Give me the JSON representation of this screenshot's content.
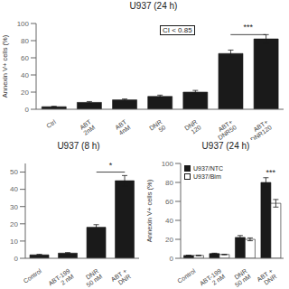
{
  "chart_data": [
    {
      "type": "bar",
      "title": "U937 (24 h)",
      "y_label": "Annexin V+ cells (%)",
      "categories": [
        "Ctrl",
        "ABT\n2nM",
        "ABT\n4nM",
        "DNR\n50",
        "DNR\n120",
        "ABT+\nDNR50",
        "ABT+\nDNR120"
      ],
      "values": [
        3,
        8,
        11,
        15,
        20,
        65,
        82
      ],
      "errors": [
        0.5,
        1,
        1,
        1.5,
        2,
        4,
        5
      ],
      "color": "#1a1a1a",
      "ylim": [
        0,
        100
      ],
      "yticks": [
        0,
        20,
        40,
        60,
        80,
        100
      ],
      "grid": false,
      "annotations": [
        {
          "text": "***",
          "categories": [
            "ABT+\nDNR50",
            "ABT+\nDNR120"
          ],
          "y": 87
        },
        {
          "text": "CI < 0.85"
        }
      ]
    },
    {
      "type": "bar",
      "title": "U937 (8 h)",
      "categories": [
        "Control",
        "ABT-199\n2 nM",
        "DNR\n50 nM",
        "ABT +\nDNR"
      ],
      "values": [
        2,
        3,
        18,
        45
      ],
      "errors": [
        0.3,
        0.3,
        1.5,
        3
      ],
      "color": "#1a1a1a",
      "ylim": [
        0,
        55
      ],
      "yticks": [
        0,
        10,
        20,
        30,
        40,
        50
      ],
      "grid": false,
      "annotations": [
        {
          "text": "*",
          "categories": [
            "DNR\n50 nM",
            "ABT +\nDNR"
          ],
          "y": 50
        }
      ]
    },
    {
      "type": "bar",
      "title": "U937 (24 h)",
      "y_label": "Annexin V+ cells (%)",
      "categories": [
        "Control",
        "ABT-199\n2 nM",
        "DNR\n50 nM",
        "ABT +\nDNR"
      ],
      "series": [
        {
          "name": "U937/NTC",
          "color": "#1a1a1a",
          "values": [
            3,
            5,
            22,
            80
          ],
          "errors": [
            0.3,
            0.4,
            2,
            5
          ]
        },
        {
          "name": "U937/Bim",
          "color": "#ffffff",
          "values": [
            3,
            4,
            20,
            58
          ],
          "errors": [
            0.3,
            0.3,
            1.5,
            4
          ]
        }
      ],
      "ylim": [
        0,
        100
      ],
      "yticks": [
        0,
        20,
        40,
        60,
        80,
        100
      ],
      "grid": false,
      "legend": "upper left",
      "annotations": [
        {
          "text": "***",
          "category": "ABT +\nDNR",
          "y": 83
        }
      ]
    }
  ]
}
